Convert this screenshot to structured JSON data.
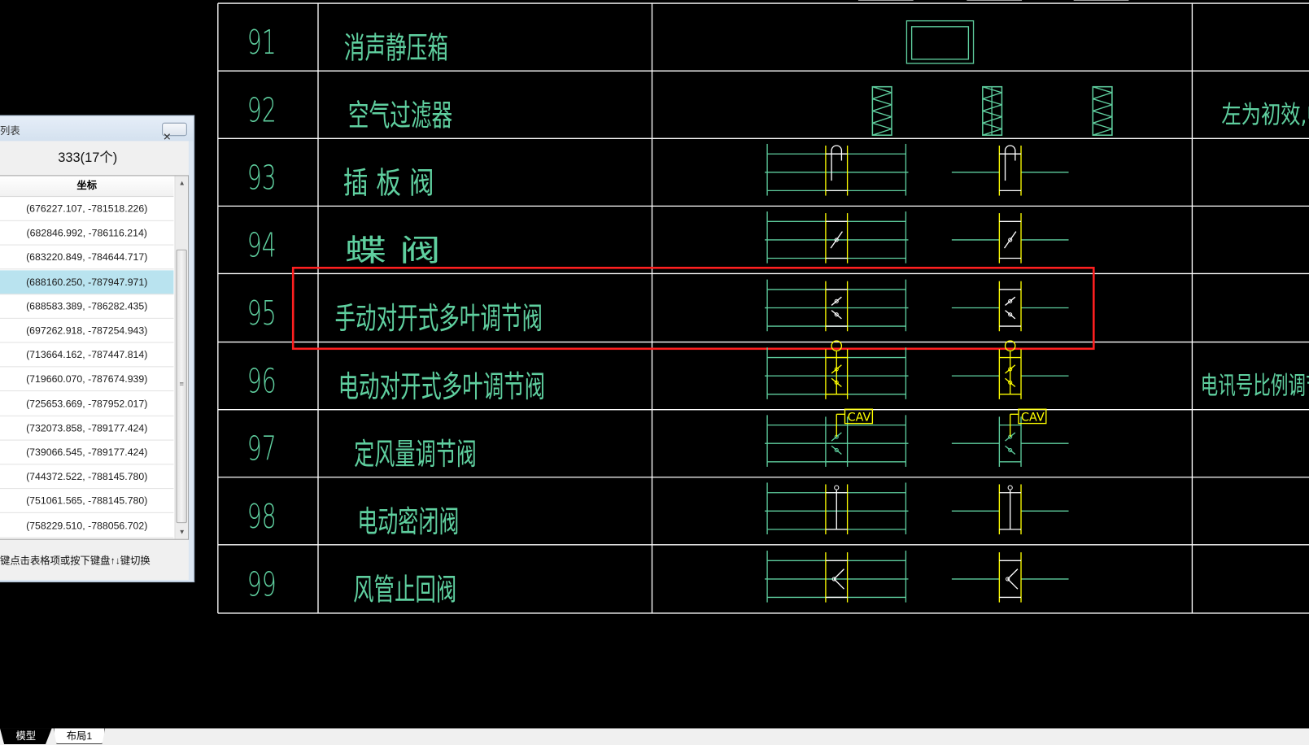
{
  "colors": {
    "background": "#000000",
    "grid_line": "#ffffff",
    "drawing_green": "#5fcf9f",
    "drawing_yellow": "#ffff00",
    "highlight_red": "#ff2020",
    "selected_row": "#b9e3ef"
  },
  "drawing": {
    "rows": [
      {
        "num": "91",
        "label": "消声静压箱",
        "symbol": "plenum-box"
      },
      {
        "num": "92",
        "label": "空气过滤器",
        "symbol": "air-filter",
        "note": "左为初效,中"
      },
      {
        "num": "93",
        "label": "插 板 阀",
        "symbol": "gate-damper"
      },
      {
        "num": "94",
        "label": "蝶    阀",
        "symbol": "butterfly-damper"
      },
      {
        "num": "95",
        "label": "手动对开式多叶调节阀",
        "symbol": "manual-multileaf-damper",
        "highlighted": true
      },
      {
        "num": "96",
        "label": "电动对开式多叶调节阀",
        "symbol": "motorized-multileaf-damper",
        "note": "电讯号比例调节"
      },
      {
        "num": "97",
        "label": "定风量调节阀",
        "symbol": "cav-damper",
        "tag": "CAV"
      },
      {
        "num": "98",
        "label": "电动密闭阀",
        "symbol": "motorized-airtight-valve"
      },
      {
        "num": "99",
        "label": "风管止回阀",
        "symbol": "duct-check-valve"
      }
    ]
  },
  "panel": {
    "title": "列表",
    "close_icon": "close-icon",
    "count": "333(17个)",
    "column_header": "坐标",
    "selected_index": 3,
    "rows": [
      "(676227.107, -781518.226)",
      "(682846.992, -786116.214)",
      "(683220.849, -784644.717)",
      "(688160.250, -787947.971)",
      "(688583.389, -786282.435)",
      "(697262.918, -787254.943)",
      "(713664.162, -787447.814)",
      "(719660.070, -787674.939)",
      "(725653.669, -787952.017)",
      "(732073.858, -789177.424)",
      "(739066.545, -789177.424)",
      "(744372.522, -788145.780)",
      "(751061.565, -788145.780)",
      "(758229.510, -788056.702)"
    ],
    "hint": "键点击表格项或按下键盘↑↓键切换"
  },
  "tabs": [
    {
      "label": "模型",
      "active": true
    },
    {
      "label": "布局1",
      "active": false
    }
  ]
}
